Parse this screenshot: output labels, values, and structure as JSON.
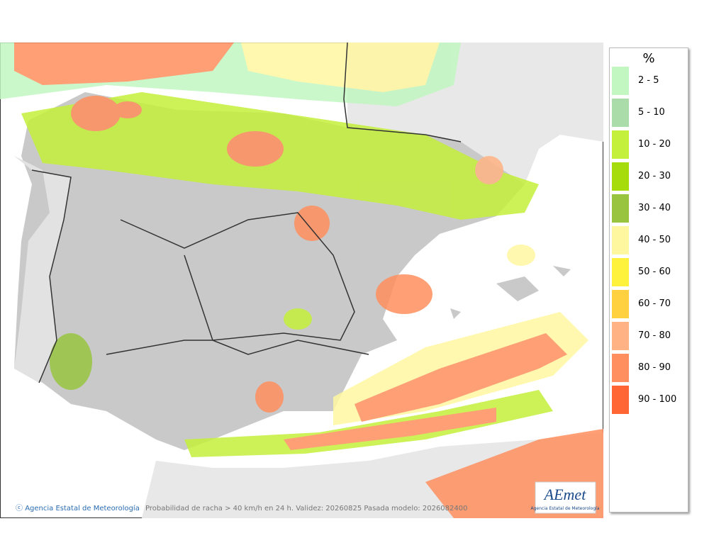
{
  "legend": {
    "unit": "%",
    "items": [
      {
        "label": "2 - 5",
        "color": "#c2f7c2"
      },
      {
        "label": "5 - 10",
        "color": "#a9dca9"
      },
      {
        "label": "10 - 20",
        "color": "#c4f03c"
      },
      {
        "label": "20 - 30",
        "color": "#a6dc0c"
      },
      {
        "label": "30 - 40",
        "color": "#98c440"
      },
      {
        "label": "40 - 50",
        "color": "#fff7a0"
      },
      {
        "label": "50 - 60",
        "color": "#fff23c"
      },
      {
        "label": "60 - 70",
        "color": "#ffd040"
      },
      {
        "label": "70 - 80",
        "color": "#ffb384"
      },
      {
        "label": "80 - 90",
        "color": "#ff8f5e"
      },
      {
        "label": "90 - 100",
        "color": "#ff6633"
      }
    ]
  },
  "footer": {
    "agency": "Agencia Estatal de Meteorología",
    "caption": "Probabilidad de racha > 40 km/h en 24 h. Validez: 20260825 Pasada modelo: 2026082400"
  },
  "logo": {
    "brand": "AEmet",
    "agency": "Agencia Estatal de Meteorología"
  }
}
